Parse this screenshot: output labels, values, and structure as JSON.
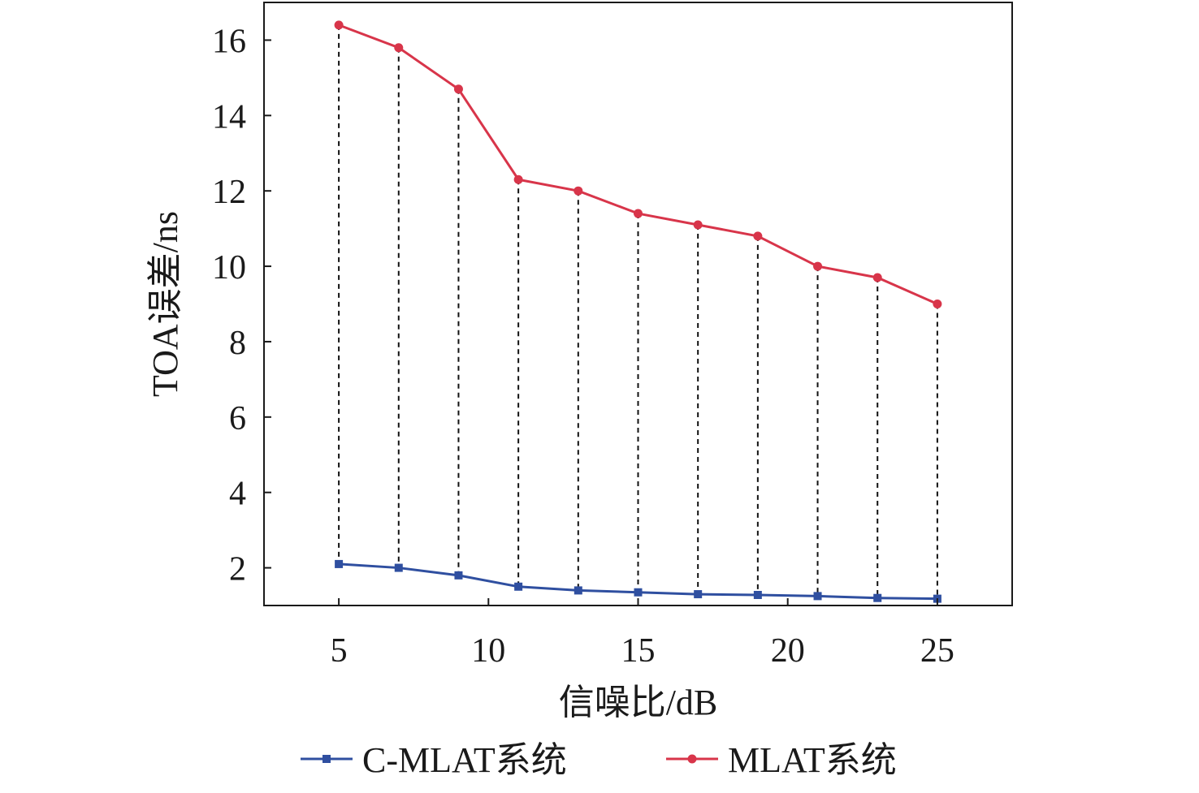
{
  "chart_data": {
    "type": "line",
    "xlabel": "信噪比/dB",
    "ylabel": "TOA误差/ns",
    "xlim": [
      2.5,
      27.5
    ],
    "ylim": [
      1.0,
      17.0
    ],
    "x_ticks": [
      5,
      10,
      15,
      20,
      25
    ],
    "y_ticks": [
      2,
      4,
      6,
      8,
      10,
      12,
      14,
      16
    ],
    "x": [
      5,
      7,
      9,
      11,
      13,
      15,
      17,
      19,
      21,
      23,
      25
    ],
    "series": [
      {
        "name": "C-MLAT系统",
        "color": "#2f4fa0",
        "marker": "square",
        "values": [
          2.1,
          2.0,
          1.8,
          1.5,
          1.4,
          1.35,
          1.3,
          1.28,
          1.25,
          1.2,
          1.18
        ]
      },
      {
        "name": "MLAT系统",
        "color": "#d8354a",
        "marker": "circle",
        "values": [
          16.4,
          15.8,
          14.7,
          12.3,
          12.0,
          11.4,
          11.1,
          10.8,
          10.0,
          9.7,
          9.0
        ]
      }
    ],
    "drop_lines": true,
    "grid": false,
    "legend_position": "bottom"
  }
}
